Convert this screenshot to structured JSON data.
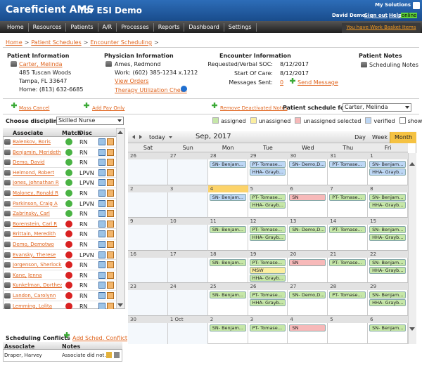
{
  "header": {
    "app": "Careficient AMS",
    "org": "for ESI Demo",
    "my_solutions": "My Solutions",
    "user": "David Demo",
    "sign_out": "Sign out",
    "help": "Help",
    "status": "online"
  },
  "nav": {
    "items": [
      "Home",
      "Resources",
      "Patients",
      "A/R",
      "Processes",
      "Reports",
      "Dashboard",
      "Settings"
    ],
    "work_basket": "You have Work Basket Items"
  },
  "breadcrumb": {
    "items": [
      "Home",
      "Patient Schedules",
      "Encounter Scheduling"
    ],
    "separator": ">"
  },
  "patient_info": {
    "heading": "Patient Information",
    "name": "Carter, Melinda",
    "address1": "485 Tuscan Woods",
    "address2": "Tampa, FL 33647",
    "phone": "Home: (813) 632-6685"
  },
  "physician_info": {
    "heading": "Physician Information",
    "name": "Ames, Redmond",
    "work": "Work: (602) 385-1234 x.1212",
    "view_orders": "View Orders",
    "therapy_check": "Therapy Utilization Check"
  },
  "encounter_info": {
    "heading": "Encounter Information",
    "rows": [
      {
        "label": "Requested/Verbal SOC:",
        "value": "8/12/2017"
      },
      {
        "label": "Start Of Care:",
        "value": "8/12/2017"
      }
    ],
    "messages": {
      "label": "Messages Sent:",
      "count": 0,
      "send": "Send Message"
    }
  },
  "patient_notes": {
    "heading": "Patient Notes",
    "link": "Scheduling Notes"
  },
  "actions": {
    "mass_cancel": "Mass Cancel",
    "add_pay_only": "Add Pay Only",
    "remove_notes": "Remove Deactivated Notes",
    "schedule_for_label": "Patient schedule for:",
    "schedule_for_value": "Carter, Melinda"
  },
  "discipline": {
    "label": "Choose discipline:",
    "value": "Skilled Nurse"
  },
  "legend": {
    "items": [
      {
        "label": "assigned",
        "color": "#c6e7a8"
      },
      {
        "label": "unassigned",
        "color": "#fbeea0"
      },
      {
        "label": "unassigned selected",
        "color": "#f7b9b9"
      },
      {
        "label": "verified",
        "color": "#bdd7f5"
      }
    ],
    "show_canceled": "show canceled"
  },
  "associates": {
    "columns": [
      "Associate",
      "Match",
      "Disc"
    ],
    "rows": [
      {
        "name": "Balenkov, Boris",
        "match": true,
        "disc": "RN"
      },
      {
        "name": "Benjamin, Merideth",
        "match": true,
        "disc": "RN"
      },
      {
        "name": "Demo, David",
        "match": true,
        "disc": "RN"
      },
      {
        "name": "Helmond, Robert",
        "match": true,
        "disc": "LPVN"
      },
      {
        "name": "Jones, Johnathan R",
        "match": true,
        "disc": "LPVN"
      },
      {
        "name": "Maloney, Ronald R",
        "match": true,
        "disc": "RN"
      },
      {
        "name": "Parkinson, Craig A",
        "match": true,
        "disc": "LPVN"
      },
      {
        "name": "Zabrinsky, Carl",
        "match": true,
        "disc": "RN"
      },
      {
        "name": "Borenstein, Carl R",
        "match": false,
        "disc": "RN"
      },
      {
        "name": "Brittain, Meredith",
        "match": false,
        "disc": "RN"
      },
      {
        "name": "Demo, Demotwo",
        "match": false,
        "disc": "RN"
      },
      {
        "name": "Evansky, Therese",
        "match": false,
        "disc": "LPVN"
      },
      {
        "name": "Jorgenson, Sherlock I",
        "match": false,
        "disc": "RN"
      },
      {
        "name": "Kane, Jenna",
        "match": false,
        "disc": "RN"
      },
      {
        "name": "Kunkelman, Dorthea",
        "match": false,
        "disc": "RN"
      },
      {
        "name": "Landon, Carolynn",
        "match": false,
        "disc": "RN"
      },
      {
        "name": "Lemming, Lolita",
        "match": false,
        "disc": "RN"
      }
    ]
  },
  "calendar": {
    "today": "today",
    "month": "Sep, 2017",
    "views": [
      "Day",
      "Week",
      "Month"
    ],
    "active_view": "Month",
    "days": [
      "Sat",
      "Sun",
      "Mon",
      "Tue",
      "Wed",
      "Thu",
      "Fri"
    ],
    "today_cell": [
      1,
      2
    ],
    "weeks": [
      {
        "dates": [
          26,
          27,
          28,
          29,
          30,
          31,
          1
        ],
        "events": [
          [],
          [],
          [
            {
              "text": "SN- Benjam...",
              "status": "verified"
            }
          ],
          [
            {
              "text": "PT- Tomase...",
              "status": "verified"
            },
            {
              "text": "HHA- Grayb...",
              "status": "verified"
            }
          ],
          [
            {
              "text": "SN- Demo,D...",
              "status": "verified"
            }
          ],
          [
            {
              "text": "PT- Tomase...",
              "status": "verified"
            }
          ],
          [
            {
              "text": "SN- Benjam...",
              "status": "verified"
            },
            {
              "text": "HHA- Grayb...",
              "status": "verified"
            }
          ]
        ]
      },
      {
        "dates": [
          2,
          3,
          4,
          5,
          6,
          7,
          8
        ],
        "events": [
          [],
          [],
          [
            {
              "text": "SN- Benjam...",
              "status": "verified"
            }
          ],
          [
            {
              "text": "PT- Tomase...",
              "status": "assigned"
            },
            {
              "text": "HHA- Grayb...",
              "status": "assigned"
            }
          ],
          [
            {
              "text": "SN",
              "status": "unassigned selected"
            }
          ],
          [
            {
              "text": "PT- Tomase...",
              "status": "assigned"
            }
          ],
          [
            {
              "text": "SN- Benjam...",
              "status": "assigned"
            },
            {
              "text": "HHA- Grayb...",
              "status": "assigned"
            }
          ]
        ]
      },
      {
        "dates": [
          9,
          10,
          11,
          12,
          13,
          14,
          15
        ],
        "events": [
          [],
          [],
          [
            {
              "text": "SN- Benjam...",
              "status": "assigned"
            }
          ],
          [
            {
              "text": "PT- Tomase...",
              "status": "assigned"
            },
            {
              "text": "HHA- Grayb...",
              "status": "assigned"
            }
          ],
          [
            {
              "text": "SN- Demo,D...",
              "status": "assigned"
            }
          ],
          [
            {
              "text": "PT- Tomase...",
              "status": "assigned"
            }
          ],
          [
            {
              "text": "SN- Benjam...",
              "status": "assigned"
            },
            {
              "text": "HHA- Grayb...",
              "status": "assigned"
            }
          ]
        ]
      },
      {
        "dates": [
          16,
          17,
          18,
          19,
          20,
          21,
          22
        ],
        "events": [
          [],
          [],
          [
            {
              "text": "SN- Benjam...",
              "status": "assigned"
            }
          ],
          [
            {
              "text": "PT- Tomase...",
              "status": "assigned"
            },
            {
              "text": "MSW",
              "status": "unassigned"
            },
            {
              "text": "HHA- Grayb...",
              "status": "assigned"
            }
          ],
          [
            {
              "text": "SN",
              "status": "unassigned selected"
            }
          ],
          [
            {
              "text": "PT- Tomase...",
              "status": "assigned"
            }
          ],
          [
            {
              "text": "SN- Benjam...",
              "status": "assigned"
            },
            {
              "text": "HHA- Grayb...",
              "status": "assigned"
            }
          ]
        ]
      },
      {
        "dates": [
          23,
          24,
          25,
          26,
          27,
          28,
          29
        ],
        "events": [
          [],
          [],
          [
            {
              "text": "SN- Benjam...",
              "status": "assigned"
            }
          ],
          [
            {
              "text": "PT- Tomase...",
              "status": "assigned"
            },
            {
              "text": "HHA- Grayb...",
              "status": "assigned"
            }
          ],
          [
            {
              "text": "SN- Demo,D...",
              "status": "assigned"
            }
          ],
          [
            {
              "text": "PT- Tomase...",
              "status": "assigned"
            }
          ],
          [
            {
              "text": "SN- Benjam...",
              "status": "assigned"
            },
            {
              "text": "HHA- Grayb...",
              "status": "assigned"
            }
          ]
        ]
      },
      {
        "dates": [
          30,
          "1 Oct",
          2,
          3,
          4,
          5,
          6
        ],
        "events": [
          [],
          [],
          [
            {
              "text": "SN- Benjam...",
              "status": "assigned"
            }
          ],
          [
            {
              "text": "PT- Tomase...",
              "status": "assigned"
            }
          ],
          [
            {
              "text": "SN",
              "status": "unassigned selected"
            }
          ],
          [],
          [
            {
              "text": "SN- Benjam...",
              "status": "assigned"
            }
          ]
        ]
      }
    ]
  },
  "conflicts": {
    "title": "Scheduling Conflicts",
    "add": "Add Sched. Conflict",
    "columns": [
      "Associate",
      "Notes"
    ],
    "rows": [
      [
        "Draper, Harvey",
        "Associate did not..."
      ]
    ]
  }
}
